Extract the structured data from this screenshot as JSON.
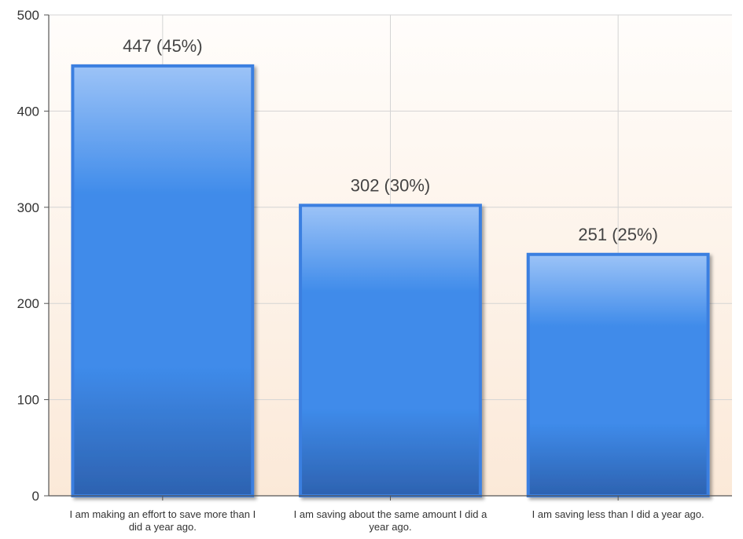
{
  "chart_data": {
    "type": "bar",
    "categories": [
      "I am making an effort to save more than I did a year ago.",
      "I am saving about the same amount I did a year ago.",
      "I am saving less than I did a year ago."
    ],
    "category_lines": [
      [
        "I am making an effort to save more than I",
        "did a year ago."
      ],
      [
        "I am saving about the same amount I did a",
        "year ago."
      ],
      [
        "I am saving less than I did a year ago."
      ]
    ],
    "values": [
      447,
      302,
      251
    ],
    "data_labels": [
      "447 (45%)",
      "302 (30%)",
      "251 (25%)"
    ],
    "ylim": [
      0,
      500
    ],
    "yticks": [
      0,
      100,
      200,
      300,
      400,
      500
    ],
    "grid": true,
    "legend": "none",
    "colors": {
      "bar_top": "#9cc3f7",
      "bar_mid": "#3f8bea",
      "bar_bottom": "#2d62b0",
      "bar_border": "#3a7fe0",
      "plot_bg_top": "#fffdfb",
      "plot_bg_bottom": "#fbe9d8",
      "grid": "#d4d4d4"
    }
  }
}
